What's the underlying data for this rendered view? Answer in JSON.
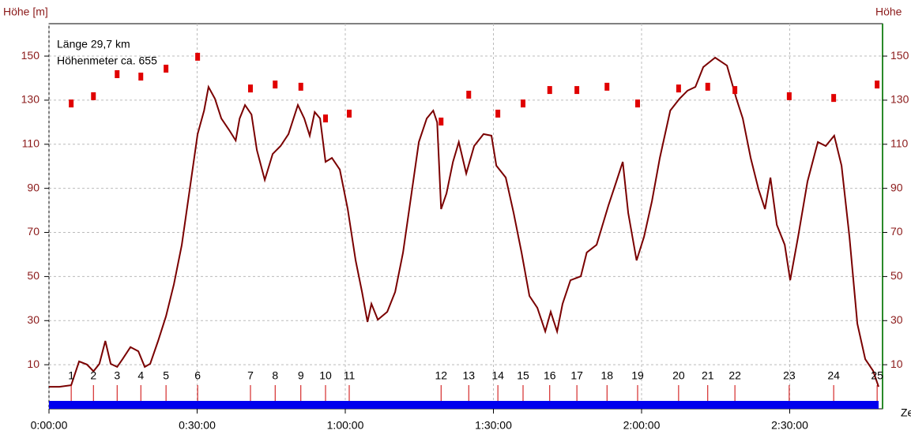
{
  "chart_data": {
    "type": "line",
    "ylabel": "Höhe [m]",
    "y2label": "Höhe",
    "xlabel": "Ze",
    "annotations": [
      "Länge 29,7 km",
      "Höhenmeter ca. 655"
    ],
    "color": "#7a0000",
    "grid": true,
    "xlim": [
      0,
      168.8
    ],
    "xticks": [
      {
        "value": 0,
        "label": "0:00:00"
      },
      {
        "value": 30,
        "label": "0:30:00"
      },
      {
        "value": 60,
        "label": "1:00:00"
      },
      {
        "value": 90,
        "label": "1:30:00"
      },
      {
        "value": 120,
        "label": "2:00:00"
      },
      {
        "value": 150,
        "label": "2:30:00"
      }
    ],
    "ylim": [
      -10,
      164.7
    ],
    "yticks": [
      10,
      30,
      50,
      70,
      90,
      110,
      130,
      150
    ],
    "y2lim": [
      -10,
      164.7
    ],
    "y2ticks": [
      10,
      30,
      50,
      70,
      90,
      110,
      130,
      150
    ],
    "x": [
      0,
      2.1,
      4.5,
      6.1,
      7.7,
      9,
      10.2,
      11.4,
      12.5,
      13.8,
      14.9,
      16.5,
      18.1,
      19.4,
      20.5,
      22.1,
      23.7,
      25.3,
      26.9,
      28.5,
      30.1,
      31.4,
      32.3,
      33.6,
      34.9,
      36.5,
      37.8,
      38.6,
      39.7,
      41,
      42.1,
      43.7,
      45.3,
      46.9,
      48.5,
      50.4,
      51.7,
      52.8,
      53.8,
      54.9,
      56,
      57.3,
      58.9,
      60.5,
      62.1,
      63.4,
      64.5,
      65.3,
      66.6,
      68.5,
      70.1,
      71.7,
      73.3,
      74.9,
      76.5,
      77.8,
      78.6,
      79.4,
      80.5,
      81.8,
      83,
      84.5,
      86.1,
      88,
      89.6,
      90.6,
      92.5,
      94.1,
      95.7,
      97.3,
      98.9,
      100.5,
      101.6,
      102.9,
      104,
      105.6,
      107.7,
      108.9,
      110.9,
      113.3,
      114.9,
      116.2,
      117.3,
      119,
      120.5,
      122.1,
      123.7,
      125.8,
      127.7,
      129.3,
      130.9,
      132.5,
      134.9,
      137.3,
      139.2,
      140.5,
      142.1,
      143.7,
      145,
      146.1,
      147.4,
      149,
      150.1,
      151.7,
      153.6,
      155.7,
      157.3,
      159,
      160.5,
      162.1,
      163.7,
      165.3,
      166.9,
      168
    ],
    "values": [
      0,
      0,
      0.7,
      11.5,
      10.1,
      7,
      10.4,
      20.8,
      10.4,
      9,
      12.5,
      18,
      16.1,
      9,
      10.4,
      20.8,
      32,
      46.5,
      64.4,
      89.5,
      114.6,
      125.3,
      136,
      130.7,
      121.7,
      116.4,
      111.7,
      121.7,
      127.8,
      123.5,
      107.4,
      93.8,
      105.6,
      109.2,
      114.6,
      127.8,
      121.7,
      113.9,
      124.6,
      121.7,
      102,
      103.8,
      98.5,
      80.6,
      57.3,
      43,
      29.4,
      37.6,
      30.4,
      34,
      43,
      60.9,
      85.9,
      111,
      121.7,
      125.3,
      119.9,
      80.6,
      87.7,
      102,
      111,
      96.7,
      109.2,
      114.6,
      113.9,
      100.3,
      94.9,
      78.8,
      60.9,
      41.2,
      35.8,
      25.1,
      34,
      25.1,
      37.6,
      48.3,
      50.1,
      60.9,
      64.4,
      82.3,
      93.1,
      102,
      78.8,
      57.3,
      68,
      84.1,
      103.8,
      125.3,
      130.7,
      134.3,
      136,
      145,
      149.3,
      145.7,
      130.7,
      121.7,
      103.8,
      89.5,
      80.6,
      94.9,
      73.4,
      64.4,
      48.3,
      68,
      93.1,
      111,
      109.2,
      113.9,
      100.3,
      68,
      28.6,
      12.5,
      7.2,
      0
    ],
    "waypoints": {
      "color": "#e00000",
      "labels": [
        1,
        2,
        3,
        4,
        5,
        6,
        7,
        8,
        9,
        10,
        11,
        12,
        13,
        14,
        15,
        16,
        17,
        18,
        19,
        20,
        21,
        22,
        23,
        24,
        25
      ],
      "x": [
        4.5,
        9,
        13.8,
        18.6,
        23.7,
        30.1,
        40.8,
        45.8,
        51,
        56,
        60.8,
        79.4,
        85,
        90.9,
        96,
        101.4,
        106.9,
        113,
        119.2,
        127.5,
        133.4,
        138.9,
        149.9,
        158.9,
        167.7
      ],
      "values": [
        128.5,
        131.8,
        141.8,
        140.7,
        144.3,
        149.7,
        135.3,
        137.1,
        136.1,
        121.7,
        123.9,
        120.3,
        132.5,
        123.9,
        128.5,
        134.6,
        134.6,
        136.1,
        128.5,
        135.3,
        136.1,
        134.6,
        131.8,
        131,
        137.1
      ]
    }
  }
}
